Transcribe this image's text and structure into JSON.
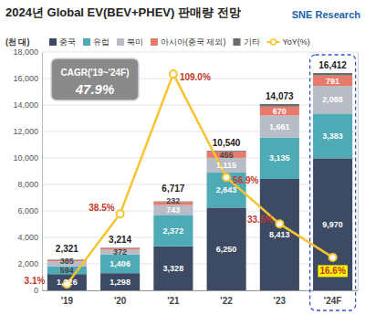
{
  "chart_data": {
    "type": "bar",
    "title": "2024년 Global EV(BEV+PHEV) 판매량 전망",
    "y_label": "(천 대)",
    "stacked": true,
    "data_labels": true,
    "grid": true,
    "legend": "top",
    "categories": [
      "'19",
      "'20",
      "'21",
      "'22",
      "'23",
      "'24F"
    ],
    "ylim": [
      0,
      18000
    ],
    "yticks": [
      0,
      {
        "value": 2000,
        "label": "2,000"
      },
      {
        "value": 4000,
        "label": "4,000"
      },
      {
        "value": 6000,
        "label": "6,000"
      },
      {
        "value": 8000,
        "label": "8,000"
      },
      {
        "value": 10000,
        "label": "10,000"
      },
      {
        "value": 12000,
        "label": "12,000"
      },
      {
        "value": 14000,
        "label": "14,000"
      },
      {
        "value": 16000,
        "label": "16,000"
      },
      {
        "value": 18000,
        "label": "18,000"
      }
    ],
    "y2lim": [
      0,
      120
    ],
    "y2ticks": [],
    "series": [
      {
        "name": "중국",
        "color": "#3d4a63",
        "values": [
          1226,
          1298,
          3328,
          6250,
          8413,
          9970
        ],
        "value_labels": [
          "1,226",
          "1,298",
          "3,328",
          "6,250",
          "8,413",
          "9,970"
        ]
      },
      {
        "name": "유럽",
        "color": "#4eaab5",
        "values": [
          594,
          1406,
          2372,
          2643,
          3135,
          3383
        ],
        "value_labels": [
          "594",
          "1,406",
          "2,372",
          "2,643",
          "3,135",
          "3,383"
        ]
      },
      {
        "name": "북미",
        "color": "#b7bcc6",
        "values": [
          385,
          372,
          743,
          1115,
          1661,
          2088
        ],
        "value_labels": [
          "385",
          "372",
          "743",
          "1,115",
          "1,661",
          "2,088"
        ]
      },
      {
        "name": "아시아(중국 제외)",
        "color": "#e8796b",
        "values": [
          80,
          100,
          232,
          455,
          670,
          791
        ],
        "value_labels": [
          null,
          null,
          "232",
          "455",
          "670",
          "791"
        ]
      },
      {
        "name": "기타",
        "color": "#6b6b6b",
        "data_labels": false,
        "values": [
          36,
          38,
          42,
          77,
          194,
          180
        ]
      },
      {
        "name": "YoY(%)",
        "type": "line",
        "axis": "y2",
        "color": "#f6c431",
        "marker": "circle",
        "line_style": "solid",
        "values": [
          3.1,
          38.5,
          109.0,
          56.9,
          33.5,
          16.6
        ],
        "value_labels": [
          "3.1%",
          "38.5%",
          "109.0%",
          "56.9%",
          "33.5%",
          "16.6%"
        ]
      }
    ],
    "totals": [
      2321,
      3214,
      6717,
      10540,
      14073,
      16412
    ],
    "total_labels": [
      "2,321",
      "3,214",
      "6,717",
      "10,540",
      "14,073",
      "16,412"
    ],
    "annotations": [
      {
        "text": "CAGR('19~'24F)"
      },
      {
        "text": "47.9%"
      },
      {
        "text": "SNE Research"
      }
    ]
  }
}
